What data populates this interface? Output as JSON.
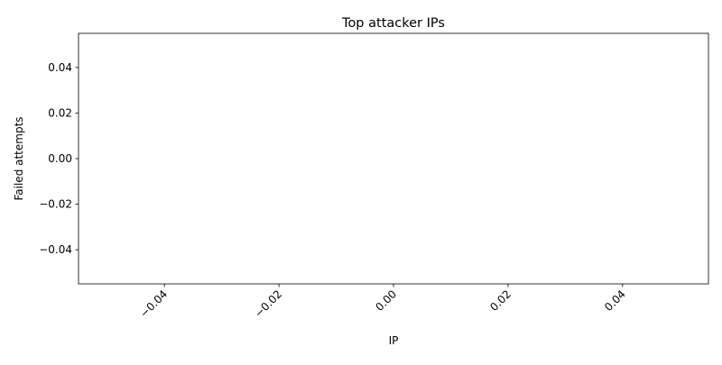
{
  "chart_data": {
    "type": "bar",
    "title": "Top attacker IPs",
    "xlabel": "IP",
    "ylabel": "Failed attempts",
    "categories": [],
    "values": [],
    "xlim": [
      -0.055,
      0.055
    ],
    "ylim": [
      -0.055,
      0.055
    ],
    "xticks": [
      "−0.04",
      "−0.02",
      "0.00",
      "0.02",
      "0.04"
    ],
    "xtick_values": [
      -0.04,
      -0.02,
      0.0,
      0.02,
      0.04
    ],
    "xtick_rotation": 45,
    "yticks": [
      "−0.04",
      "−0.02",
      "0.00",
      "0.02",
      "0.04"
    ],
    "ytick_values": [
      -0.04,
      -0.02,
      0.0,
      0.02,
      0.04
    ],
    "grid": false,
    "legend": "none"
  }
}
